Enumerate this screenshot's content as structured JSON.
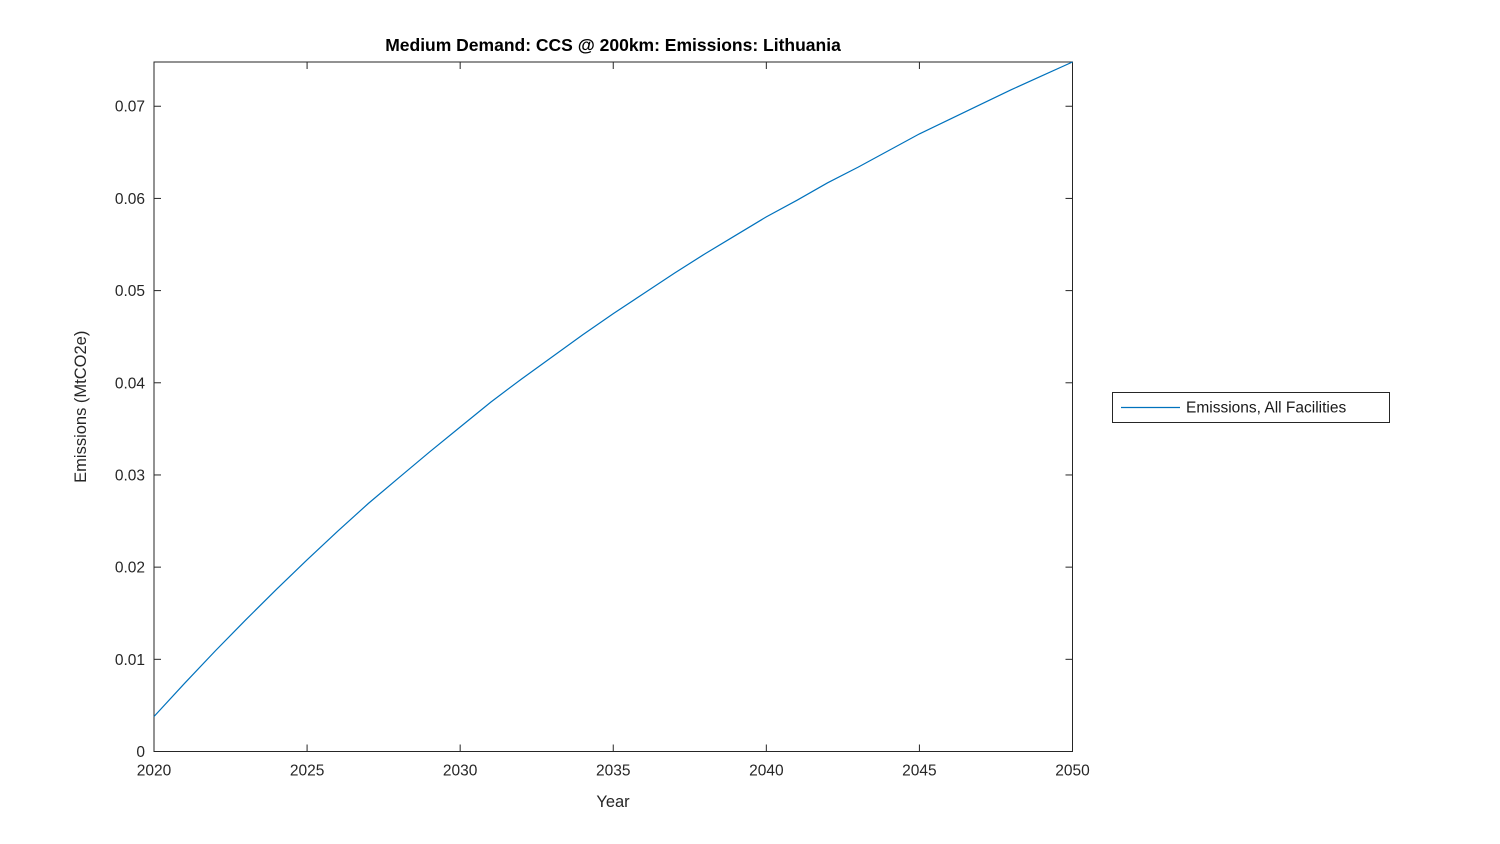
{
  "figure": {
    "background": "#ffffff"
  },
  "chart_data": {
    "type": "line",
    "title": "Medium Demand: CCS @ 200km: Emissions: Lithuania",
    "xlabel": "Year",
    "ylabel": "Emissions (MtCO2e)",
    "xlim": [
      2020,
      2050
    ],
    "ylim": [
      0,
      0.0748
    ],
    "x_ticks": [
      2020,
      2025,
      2030,
      2035,
      2040,
      2045,
      2050
    ],
    "y_ticks": [
      0,
      0.01,
      0.02,
      0.03,
      0.04,
      0.05,
      0.06,
      0.07
    ],
    "grid": false,
    "box": true,
    "axis_color": "#262626",
    "legend": {
      "position": "outside-right",
      "entries": [
        "Emissions, All Facilities"
      ]
    },
    "series": [
      {
        "name": "Emissions, All Facilities",
        "color": "#0072BD",
        "x": [
          2020,
          2021,
          2022,
          2023,
          2024,
          2025,
          2026,
          2027,
          2028,
          2029,
          2030,
          2031,
          2032,
          2033,
          2034,
          2035,
          2036,
          2037,
          2038,
          2039,
          2040,
          2041,
          2042,
          2043,
          2044,
          2045,
          2046,
          2047,
          2048,
          2049,
          2050
        ],
        "values": [
          0.0038,
          0.0074,
          0.0109,
          0.0143,
          0.0176,
          0.0208,
          0.0239,
          0.0269,
          0.0297,
          0.0325,
          0.0352,
          0.0379,
          0.0404,
          0.0428,
          0.0452,
          0.0475,
          0.0497,
          0.0519,
          0.054,
          0.056,
          0.058,
          0.0598,
          0.0617,
          0.0634,
          0.0652,
          0.067,
          0.0686,
          0.0702,
          0.0718,
          0.0733,
          0.0748
        ]
      }
    ]
  }
}
